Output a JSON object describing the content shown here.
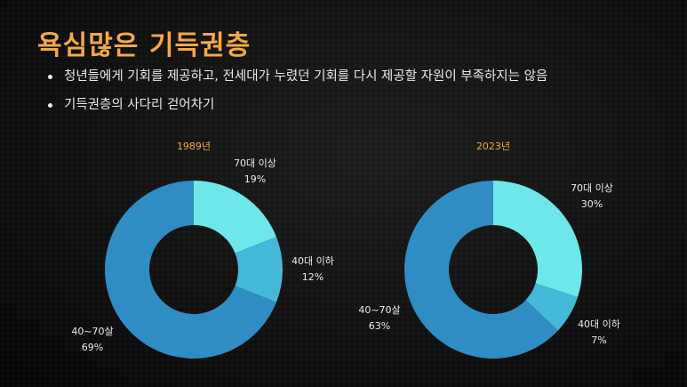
{
  "slide": {
    "title": "욕심많은 기득권층",
    "bullets": [
      "청년들에게 기회를 제공하고, 전세대가 누렸던 기회를 다시 제공할 자원이 부족하지는 않음",
      "기득권층의 사다리 걷어차기"
    ]
  },
  "colors": {
    "title": "#f5a844",
    "text": "#e9e9e9",
    "slice_70_plus": "#6ee7ea",
    "slice_40_below": "#45b8d8",
    "slice_40_70": "#2f8dc3"
  },
  "chart_data": [
    {
      "type": "pie",
      "donut": true,
      "title": "1989년",
      "slices": [
        {
          "label": "70대 이상",
          "value": 19,
          "value_label": "19%",
          "color": "#6ee7ea"
        },
        {
          "label": "40대 이하",
          "value": 12,
          "value_label": "12%",
          "color": "#45b8d8"
        },
        {
          "label": "40~70살",
          "value": 69,
          "value_label": "69%",
          "color": "#2f8dc3"
        }
      ]
    },
    {
      "type": "pie",
      "donut": true,
      "title": "2023년",
      "slices": [
        {
          "label": "70대 이상",
          "value": 30,
          "value_label": "30%",
          "color": "#6ee7ea"
        },
        {
          "label": "40대 이하",
          "value": 7,
          "value_label": "7%",
          "color": "#45b8d8"
        },
        {
          "label": "40~70살",
          "value": 63,
          "value_label": "63%",
          "color": "#2f8dc3"
        }
      ]
    }
  ]
}
